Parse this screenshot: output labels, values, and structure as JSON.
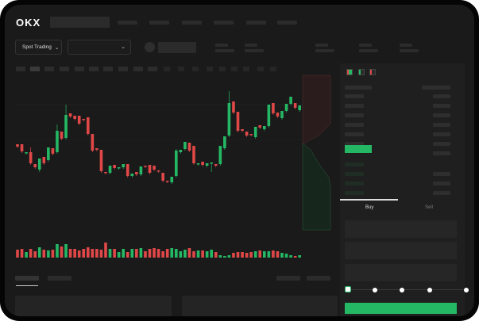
{
  "header": {
    "logo": "OKX"
  },
  "toolbar": {
    "market_select": "Spot Trading",
    "pair_select": ""
  },
  "order_panel": {
    "tabs": [
      {
        "label": "Buy",
        "active": true
      },
      {
        "label": "Sell",
        "active": false
      }
    ],
    "slider_percent": 0,
    "submit_color": "#25b864"
  },
  "colors": {
    "up": "#25b864",
    "down": "#e04848",
    "background": "#1a1a1a"
  },
  "chart_data": {
    "type": "candlestick",
    "candles": [
      [
        118,
        118,
        115,
        115
      ],
      [
        118,
        118,
        109,
        109
      ],
      [
        107,
        108,
        107,
        108
      ],
      [
        108,
        114,
        94,
        94
      ],
      [
        93,
        93,
        89,
        89
      ],
      [
        86,
        100,
        85,
        100
      ],
      [
        102,
        102,
        94,
        94
      ],
      [
        98,
        114,
        98,
        114
      ],
      [
        113,
        113,
        106,
        106
      ],
      [
        108,
        143,
        108,
        135
      ],
      [
        134,
        134,
        125,
        125
      ],
      [
        126,
        168,
        126,
        155
      ],
      [
        157,
        157,
        153,
        153
      ],
      [
        154,
        154,
        150,
        150
      ],
      [
        154,
        154,
        144,
        144
      ],
      [
        150,
        150,
        149,
        149
      ],
      [
        152,
        152,
        131,
        131
      ],
      [
        131,
        131,
        110,
        110
      ],
      [
        113,
        113,
        111,
        111
      ],
      [
        111,
        111,
        84,
        84
      ],
      [
        83,
        83,
        82,
        82
      ],
      [
        82,
        91,
        82,
        91
      ],
      [
        92,
        92,
        88,
        88
      ],
      [
        88,
        89,
        88,
        89
      ],
      [
        89,
        93,
        89,
        93
      ],
      [
        93,
        93,
        78,
        78
      ],
      [
        78,
        81,
        78,
        81
      ],
      [
        83,
        83,
        80,
        80
      ],
      [
        80,
        90,
        80,
        90
      ],
      [
        91,
        91,
        90,
        90
      ],
      [
        92,
        92,
        82,
        82
      ],
      [
        91,
        91,
        86,
        86
      ],
      [
        85,
        85,
        84,
        84
      ],
      [
        82,
        82,
        72,
        72
      ],
      [
        72,
        72,
        71,
        71
      ],
      [
        70,
        77,
        70,
        77
      ],
      [
        78,
        112,
        78,
        110
      ],
      [
        108,
        111,
        108,
        111
      ],
      [
        112,
        121,
        112,
        121
      ],
      [
        120,
        120,
        110,
        110
      ],
      [
        116,
        116,
        94,
        94
      ],
      [
        93,
        94,
        93,
        94
      ],
      [
        96,
        96,
        92,
        92
      ],
      [
        91,
        94,
        91,
        94
      ],
      [
        95,
        95,
        85,
        95
      ],
      [
        93,
        93,
        91,
        91
      ],
      [
        93,
        116,
        93,
        116
      ],
      [
        113,
        128,
        113,
        128
      ],
      [
        129,
        185,
        129,
        170
      ],
      [
        172,
        172,
        158,
        158
      ],
      [
        159,
        159,
        135,
        135
      ],
      [
        137,
        137,
        135,
        135
      ],
      [
        134,
        134,
        129,
        129
      ],
      [
        131,
        131,
        130,
        130
      ],
      [
        127,
        140,
        127,
        140
      ],
      [
        142,
        142,
        139,
        139
      ],
      [
        137,
        141,
        137,
        141
      ],
      [
        141,
        168,
        141,
        168
      ],
      [
        170,
        170,
        157,
        157
      ],
      [
        158,
        158,
        153,
        153
      ],
      [
        151,
        160,
        151,
        160
      ],
      [
        160,
        169,
        160,
        169
      ],
      [
        169,
        178,
        169,
        178
      ],
      [
        170,
        170,
        164,
        164
      ],
      [
        161,
        167,
        161,
        167
      ]
    ],
    "volumes": [
      10,
      11,
      7,
      11,
      8,
      13,
      10,
      9,
      10,
      17,
      14,
      17,
      11,
      11,
      9,
      11,
      13,
      11,
      11,
      10,
      19,
      11,
      11,
      7,
      11,
      7,
      11,
      11,
      12,
      8,
      11,
      12,
      11,
      8,
      11,
      12,
      11,
      8,
      10,
      12,
      8,
      9,
      9,
      8,
      10,
      7,
      3,
      2,
      3,
      6,
      7,
      7,
      6,
      7,
      8,
      9,
      8,
      8,
      9,
      8,
      6,
      5,
      3,
      2,
      3
    ]
  }
}
